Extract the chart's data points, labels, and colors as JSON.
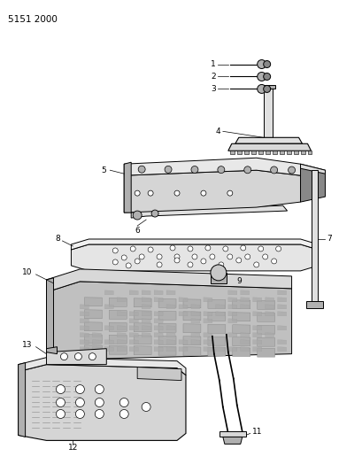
{
  "page_id": "5151 2000",
  "bg": "#ffffff",
  "lc": "#000000",
  "gray_light": "#d8d8d8",
  "gray_mid": "#b0b0b0",
  "gray_dark": "#888888",
  "fig_width": 4.1,
  "fig_height": 5.33,
  "dpi": 100
}
